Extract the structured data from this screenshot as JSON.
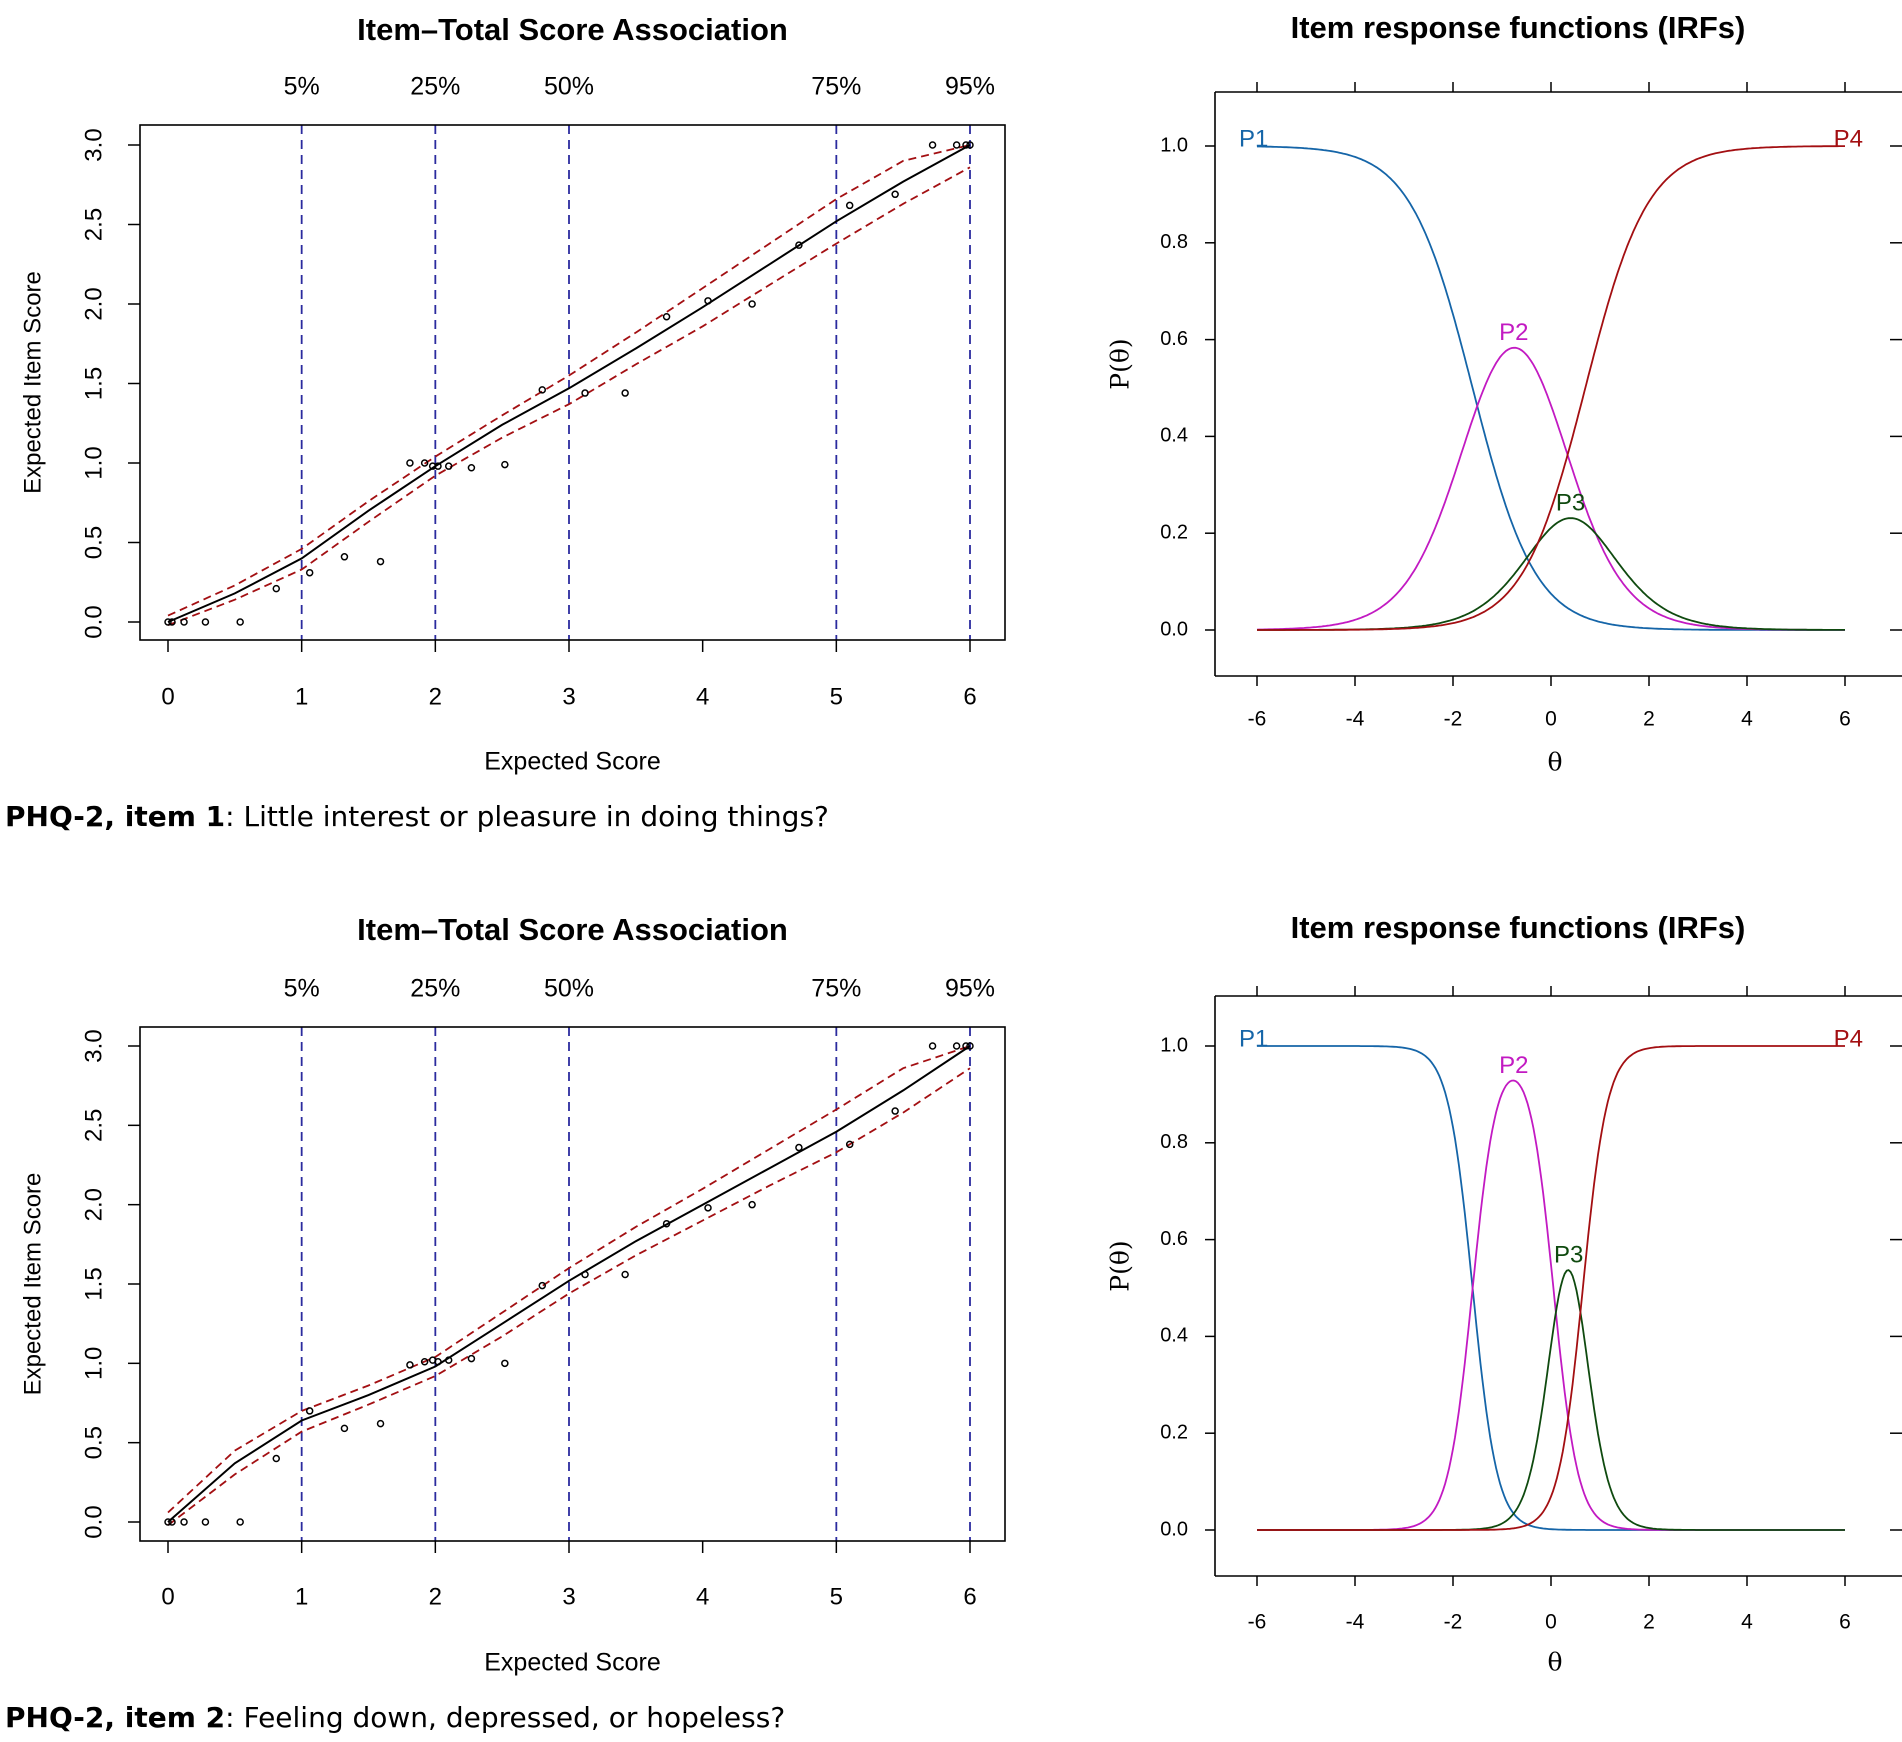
{
  "colors": {
    "p1": "#1565a8",
    "p2": "#c21ac2",
    "p3": "#0f4a0f",
    "p4": "#a30f12",
    "vline": "#2b2b9e",
    "ci": "#a30f12",
    "curve": "#000000"
  },
  "captions": [
    {
      "bold": "PHQ-2, item 1",
      "text": ": Little interest or pleasure in doing things?"
    },
    {
      "bold": "PHQ-2, item 2",
      "text": ": Feeling down, depressed, or hopeless?"
    }
  ],
  "chart_data": [
    {
      "type": "line",
      "id": "assoc1",
      "title": "Item–Total Score Association",
      "xlabel": "Expected Score",
      "ylabel": "Expected Item Score",
      "xlim": [
        0,
        6
      ],
      "ylim": [
        0,
        3
      ],
      "xticks": [
        0,
        1,
        2,
        3,
        4,
        5,
        6
      ],
      "yticks": [
        0,
        0.5,
        1,
        1.5,
        2,
        2.5,
        3
      ],
      "ytick_labels": [
        "0.0",
        "0.5",
        "1.0",
        "1.5",
        "2.0",
        "2.5",
        "3.0"
      ],
      "percentiles": [
        {
          "label": "5%",
          "x": 1
        },
        {
          "label": "25%",
          "x": 2
        },
        {
          "label": "50%",
          "x": 3
        },
        {
          "label": "75%",
          "x": 5
        },
        {
          "label": "95%",
          "x": 6
        }
      ],
      "curve": {
        "x": [
          0,
          0.5,
          1,
          1.5,
          2,
          2.5,
          3,
          3.5,
          4,
          4.5,
          5,
          5.5,
          6
        ],
        "y": [
          0,
          0.18,
          0.4,
          0.7,
          0.98,
          1.24,
          1.47,
          1.72,
          1.98,
          2.25,
          2.52,
          2.77,
          3.0
        ]
      },
      "upper": {
        "x": [
          0,
          0.5,
          1,
          1.5,
          2,
          2.5,
          3,
          3.5,
          4,
          4.5,
          5,
          5.5,
          6
        ],
        "y": [
          0.04,
          0.23,
          0.46,
          0.76,
          1.04,
          1.3,
          1.55,
          1.82,
          2.1,
          2.38,
          2.66,
          2.9,
          3.0
        ]
      },
      "lower": {
        "x": [
          0,
          0.5,
          1,
          1.5,
          2,
          2.5,
          3,
          3.5,
          4,
          4.5,
          5,
          5.5,
          6
        ],
        "y": [
          -0.02,
          0.14,
          0.33,
          0.63,
          0.92,
          1.16,
          1.37,
          1.62,
          1.86,
          2.12,
          2.38,
          2.63,
          2.86
        ]
      },
      "points": {
        "x": [
          0,
          0.03,
          0.12,
          0.28,
          0.54,
          0.81,
          1.06,
          1.32,
          1.59,
          1.81,
          1.92,
          1.98,
          2.02,
          2.1,
          2.27,
          2.52,
          2.8,
          3.12,
          3.42,
          3.73,
          4.04,
          4.37,
          4.72,
          5.1,
          5.44,
          5.72,
          5.9,
          5.97,
          6.0
        ],
        "y": [
          0,
          0,
          0,
          0,
          0,
          0.21,
          0.31,
          0.41,
          0.38,
          1.0,
          1.0,
          0.98,
          0.98,
          0.98,
          0.97,
          0.99,
          1.46,
          1.44,
          1.44,
          1.92,
          2.02,
          2.0,
          2.37,
          2.62,
          2.69,
          3.0,
          3.0,
          3.0,
          3.0
        ]
      }
    },
    {
      "type": "line",
      "id": "irf1",
      "title": "Item response functions (IRFs)",
      "xlabel": "θ",
      "ylabel": "P(θ)",
      "xlim": [
        -6,
        6
      ],
      "ylim": [
        0,
        1
      ],
      "xticks": [
        -6,
        -4,
        -2,
        0,
        2,
        4,
        6
      ],
      "yticks": [
        0,
        0.2,
        0.4,
        0.6,
        0.8,
        1.0
      ],
      "ytick_labels": [
        "0.0",
        "0.2",
        "0.4",
        "0.6",
        "0.8",
        "1.0"
      ],
      "model": {
        "a": 1.57,
        "b": [
          -1.6,
          0.1,
          0.7
        ]
      },
      "series": [
        {
          "name": "P1",
          "label_pos": "left"
        },
        {
          "name": "P2",
          "label_pos": "peak"
        },
        {
          "name": "P3",
          "label_pos": "peak"
        },
        {
          "name": "P4",
          "label_pos": "right"
        }
      ]
    },
    {
      "type": "line",
      "id": "assoc2",
      "title": "Item–Total Score Association",
      "xlabel": "Expected Score",
      "ylabel": "Expected Item Score",
      "xlim": [
        0,
        6
      ],
      "ylim": [
        0,
        3
      ],
      "xticks": [
        0,
        1,
        2,
        3,
        4,
        5,
        6
      ],
      "yticks": [
        0,
        0.5,
        1,
        1.5,
        2,
        2.5,
        3
      ],
      "ytick_labels": [
        "0.0",
        "0.5",
        "1.0",
        "1.5",
        "2.0",
        "2.5",
        "3.0"
      ],
      "percentiles": [
        {
          "label": "5%",
          "x": 1
        },
        {
          "label": "25%",
          "x": 2
        },
        {
          "label": "50%",
          "x": 3
        },
        {
          "label": "75%",
          "x": 5
        },
        {
          "label": "95%",
          "x": 6
        }
      ],
      "curve": {
        "x": [
          0,
          0.5,
          1,
          1.5,
          2,
          2.5,
          3,
          3.5,
          4,
          4.5,
          5,
          5.5,
          6
        ],
        "y": [
          0,
          0.37,
          0.64,
          0.8,
          0.98,
          1.25,
          1.52,
          1.77,
          2.0,
          2.23,
          2.46,
          2.72,
          3.0
        ]
      },
      "upper": {
        "x": [
          0,
          0.5,
          1,
          1.5,
          2,
          2.5,
          3,
          3.5,
          4,
          4.5,
          5,
          5.5,
          6
        ],
        "y": [
          0.06,
          0.45,
          0.7,
          0.86,
          1.04,
          1.32,
          1.6,
          1.86,
          2.1,
          2.35,
          2.6,
          2.86,
          3.0
        ]
      },
      "lower": {
        "x": [
          0,
          0.5,
          1,
          1.5,
          2,
          2.5,
          3,
          3.5,
          4,
          4.5,
          5,
          5.5,
          6
        ],
        "y": [
          -0.02,
          0.3,
          0.57,
          0.74,
          0.92,
          1.17,
          1.44,
          1.68,
          1.9,
          2.12,
          2.33,
          2.58,
          2.86
        ]
      },
      "points": {
        "x": [
          0,
          0.03,
          0.12,
          0.28,
          0.54,
          0.81,
          1.06,
          1.32,
          1.59,
          1.81,
          1.92,
          1.98,
          2.02,
          2.1,
          2.27,
          2.52,
          2.8,
          3.12,
          3.42,
          3.73,
          4.04,
          4.37,
          4.72,
          5.1,
          5.44,
          5.72,
          5.9,
          5.97,
          6.0
        ],
        "y": [
          0,
          0,
          0,
          0,
          0,
          0.4,
          0.7,
          0.59,
          0.62,
          0.99,
          1.01,
          1.02,
          1.01,
          1.02,
          1.03,
          1.0,
          1.49,
          1.56,
          1.56,
          1.88,
          1.98,
          2.0,
          2.36,
          2.38,
          2.59,
          3.0,
          3.0,
          3.0,
          3.0
        ]
      }
    },
    {
      "type": "line",
      "id": "irf2",
      "title": "Item response functions (IRFs)",
      "xlabel": "θ",
      "ylabel": "P(θ)",
      "xlim": [
        -6,
        6
      ],
      "ylim": [
        0,
        1
      ],
      "xticks": [
        -6,
        -4,
        -2,
        0,
        2,
        4,
        6
      ],
      "yticks": [
        0,
        0.2,
        0.4,
        0.6,
        0.8,
        1.0
      ],
      "ytick_labels": [
        "0.0",
        "0.2",
        "0.4",
        "0.6",
        "0.8",
        "1.0"
      ],
      "model": {
        "a": 4.0,
        "b": [
          -1.6,
          0.05,
          0.65
        ]
      },
      "series": [
        {
          "name": "P1",
          "label_pos": "left"
        },
        {
          "name": "P2",
          "label_pos": "peak"
        },
        {
          "name": "P3",
          "label_pos": "peak"
        },
        {
          "name": "P4",
          "label_pos": "right"
        }
      ]
    }
  ]
}
